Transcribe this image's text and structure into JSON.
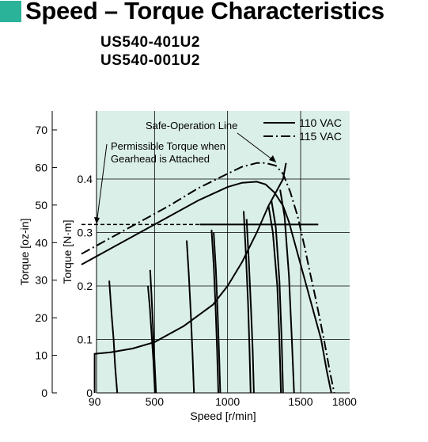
{
  "page": {
    "title": "Speed – Torque Characteristics",
    "models": [
      "US540-401U2",
      "US540-001U2"
    ]
  },
  "colors": {
    "accent": "#2bb39a",
    "plot_bg": "#dbefe9",
    "line": "#000000"
  },
  "chart_data": {
    "type": "line",
    "xlabel": "Speed [r/min]",
    "ylabel_inner": "Torque [N·m]",
    "ylabel_outer": "Torque [oz-in]",
    "x_ticks": [
      90,
      500,
      1000,
      1500,
      1800
    ],
    "y_ticks": [
      0,
      0.1,
      0.2,
      0.3,
      0.4
    ],
    "y_ticks_oz": [
      0,
      10,
      20,
      30,
      40,
      50,
      60,
      70
    ],
    "xlim": [
      0,
      1850
    ],
    "ylim": [
      0,
      0.5
    ],
    "grid": true,
    "legend_position": "top-right",
    "legend": [
      {
        "label": "110 VAC",
        "style": "solid"
      },
      {
        "label": "115 VAC",
        "style": "dash-dot"
      }
    ],
    "annotations": [
      {
        "text": "Safe-Operation Line"
      },
      {
        "text": "Permissible Torque when Gearhead is Attached"
      }
    ],
    "series": [
      {
        "name": "115 VAC",
        "style": "dash-dot",
        "x": [
          0,
          200,
          400,
          600,
          800,
          1000,
          1100,
          1200,
          1260,
          1330,
          1380,
          1430,
          1480,
          1530,
          1560,
          1580,
          1600,
          1630,
          1660,
          1700,
          1730
        ],
        "y": [
          0.26,
          0.29,
          0.32,
          0.35,
          0.383,
          0.41,
          0.423,
          0.43,
          0.43,
          0.425,
          0.41,
          0.375,
          0.33,
          0.27,
          0.23,
          0.205,
          0.18,
          0.14,
          0.1,
          0.04,
          0
        ]
      },
      {
        "name": "110 VAC",
        "style": "solid",
        "x": [
          0,
          200,
          400,
          600,
          800,
          1000,
          1100,
          1200,
          1260,
          1320,
          1380,
          1420,
          1460,
          1500,
          1540,
          1600,
          1640,
          1680,
          1710
        ],
        "y": [
          0.24,
          0.27,
          0.3,
          0.33,
          0.36,
          0.385,
          0.393,
          0.395,
          0.39,
          0.375,
          0.35,
          0.32,
          0.28,
          0.24,
          0.2,
          0.14,
          0.1,
          0.04,
          0
        ]
      },
      {
        "name": "Safe-Operation Line",
        "style": "solid",
        "x": [
          90,
          90,
          200,
          350,
          500,
          700,
          900,
          1000,
          1100,
          1200,
          1280,
          1340,
          1380,
          1400
        ],
        "y": [
          0,
          0.073,
          0.076,
          0.083,
          0.095,
          0.125,
          0.165,
          0.2,
          0.245,
          0.3,
          0.35,
          0.38,
          0.4,
          0.43
        ]
      },
      {
        "name": "Permissible Torque when Gearhead is Attached",
        "style": "dashed",
        "x": [
          0,
          1620
        ],
        "y": [
          0.315,
          0.315
        ]
      },
      {
        "name": "Permissible Torque when Gearhead is Attached",
        "style": "solid",
        "x": [
          810,
          1620
        ],
        "y": [
          0.315,
          0.315
        ]
      }
    ],
    "speed_control_lines": [
      {
        "x": [
          190,
          205,
          220,
          230,
          245
        ],
        "y": [
          0.21,
          0.15,
          0.1,
          0.05,
          0
        ]
      },
      {
        "x": [
          455,
          468,
          480,
          492,
          503
        ],
        "y": [
          0.2,
          0.16,
          0.11,
          0.06,
          0
        ]
      },
      {
        "x": [
          470,
          480,
          490,
          500,
          510
        ],
        "y": [
          0.23,
          0.18,
          0.12,
          0.06,
          0
        ]
      },
      {
        "x": [
          720,
          735,
          748,
          760,
          770
        ],
        "y": [
          0.285,
          0.22,
          0.15,
          0.075,
          0
        ]
      },
      {
        "x": [
          890,
          905,
          918,
          928,
          937
        ],
        "y": [
          0.305,
          0.24,
          0.16,
          0.08,
          0
        ]
      },
      {
        "x": [
          905,
          920,
          932,
          942,
          950
        ],
        "y": [
          0.3,
          0.23,
          0.15,
          0.07,
          0
        ]
      },
      {
        "x": [
          1110,
          1125,
          1140,
          1150,
          1158
        ],
        "y": [
          0.34,
          0.26,
          0.17,
          0.08,
          0
        ]
      },
      {
        "x": [
          1130,
          1145,
          1160,
          1172,
          1180
        ],
        "y": [
          0.325,
          0.25,
          0.16,
          0.08,
          0
        ]
      },
      {
        "x": [
          1280,
          1310,
          1340,
          1355,
          1365
        ],
        "y": [
          0.35,
          0.3,
          0.2,
          0.1,
          0
        ]
      },
      {
        "x": [
          1300,
          1330,
          1355,
          1370,
          1380
        ],
        "y": [
          0.36,
          0.31,
          0.21,
          0.1,
          0
        ]
      },
      {
        "x": [
          1360,
          1390,
          1420,
          1440,
          1455
        ],
        "y": [
          0.38,
          0.33,
          0.22,
          0.1,
          0
        ]
      }
    ]
  }
}
